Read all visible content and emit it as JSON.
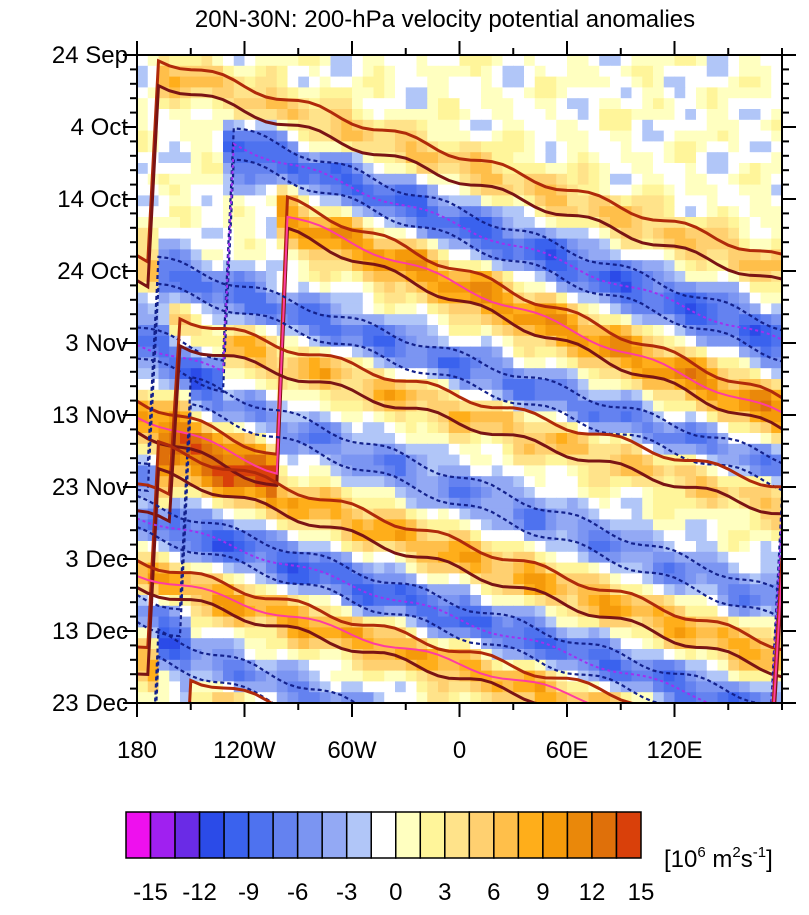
{
  "chart_data": {
    "type": "heatmap",
    "title": "20N-30N: 200-hPa velocity potential anomalies",
    "x_tick_labels": [
      "180",
      "120W",
      "60W",
      "0",
      "60E",
      "120E"
    ],
    "x_tick_values": [
      -180,
      -120,
      -60,
      0,
      60,
      120
    ],
    "xlim": [
      -180,
      180
    ],
    "y_tick_labels": [
      "24 Sep",
      "4 Oct",
      "14 Oct",
      "24 Oct",
      "3 Nov",
      "13 Nov",
      "23 Nov",
      "3 Dec",
      "13 Dec",
      "23 Dec"
    ],
    "y_tick_days": [
      0,
      10,
      20,
      30,
      40,
      50,
      60,
      70,
      80,
      90
    ],
    "ylim_days": [
      0,
      90
    ],
    "colorbar": {
      "labels": [
        "-15",
        "-12",
        "-9",
        "-6",
        "-3",
        "0",
        "3",
        "6",
        "9",
        "12",
        "15"
      ],
      "levels": [
        -16.5,
        -15,
        -13.5,
        -12,
        -10.5,
        -9,
        -7.5,
        -6,
        -4.5,
        -3,
        -1.5,
        0,
        1.5,
        3,
        4.5,
        6,
        7.5,
        9,
        10.5,
        12,
        13.5,
        15,
        16.5
      ],
      "unit_base": "[10",
      "unit_exp1": "6",
      "unit_mid": " m",
      "unit_exp2": "2",
      "unit_mid2": "s",
      "unit_exp3": "-1",
      "unit_end": "]",
      "colors": [
        "#ee10ee",
        "#a020f0",
        "#6a2be6",
        "#2b4be8",
        "#3a62ee",
        "#4e72ef",
        "#6482f0",
        "#7b95f2",
        "#93a9f4",
        "#b1c6f8",
        "#ffffff",
        "#ffffc0",
        "#fff59a",
        "#ffe38a",
        "#ffd070",
        "#ffbf4a",
        "#ffae1a",
        "#f59a0a",
        "#ea880a",
        "#df700a",
        "#d9400a"
      ]
    },
    "contours": {
      "positive_line_colors": [
        "#b02a0a",
        "#7a1414",
        "#ff3ca0"
      ],
      "negative_line_colors": [
        "#13218c",
        "#a030f0",
        "#ff40c0"
      ]
    },
    "bands": [
      {
        "day": 2,
        "lon": -170,
        "slope": 0.08,
        "amp": 6,
        "width": 2.4
      },
      {
        "day": 12,
        "lon": -130,
        "slope": 0.09,
        "amp": -9,
        "width": 3.0
      },
      {
        "day": 22,
        "lon": -100,
        "slope": 0.1,
        "amp": 10,
        "width": 3.0
      },
      {
        "day": 30,
        "lon": -170,
        "slope": 0.08,
        "amp": -8,
        "width": 2.6
      },
      {
        "day": 38,
        "lon": -160,
        "slope": 0.07,
        "amp": 7,
        "width": 2.6
      },
      {
        "day": 47,
        "lon": -150,
        "slope": 0.09,
        "amp": -6,
        "width": 2.6
      },
      {
        "day": 56,
        "lon": -170,
        "slope": 0.08,
        "amp": 8,
        "width": 2.6
      },
      {
        "day": 64,
        "lon": -180,
        "slope": 0.08,
        "amp": -9,
        "width": 3.0
      },
      {
        "day": 72,
        "lon": -180,
        "slope": 0.07,
        "amp": 9,
        "width": 2.6
      },
      {
        "day": 82,
        "lon": -170,
        "slope": 0.09,
        "amp": -7,
        "width": 2.6
      },
      {
        "day": 88,
        "lon": -150,
        "slope": 0.08,
        "amp": 6,
        "width": 2.2
      }
    ]
  }
}
